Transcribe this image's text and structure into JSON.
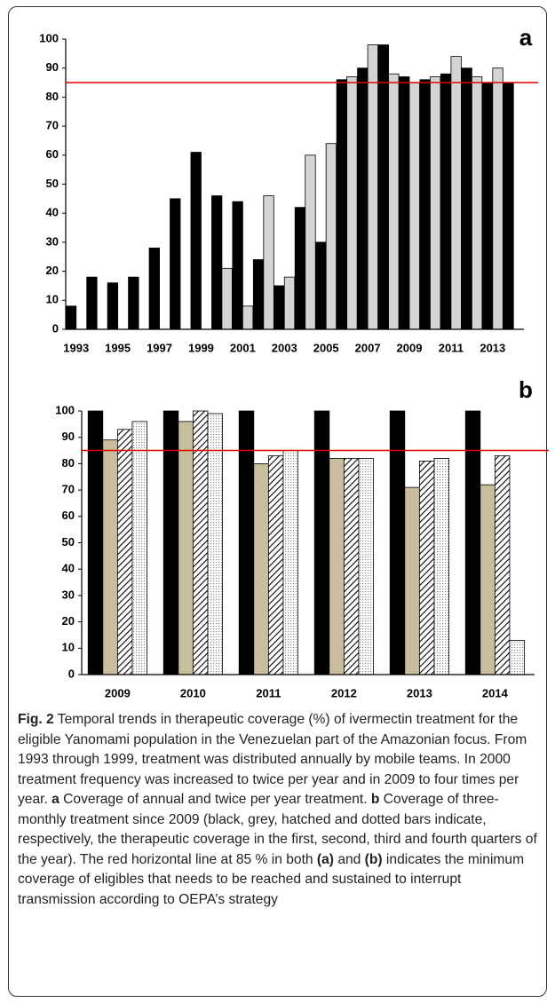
{
  "chart_data": [
    {
      "type": "bar",
      "panel_label": "a",
      "categories": [
        "1993",
        null,
        "1995",
        null,
        "1997",
        null,
        "1999",
        null,
        "2001",
        null,
        "2003",
        null,
        "2005",
        null,
        "2007",
        null,
        "2009",
        null,
        "2011",
        null,
        "2013",
        null
      ],
      "series": [
        {
          "color": "#000000",
          "values": [
            8,
            18,
            16,
            18,
            28,
            45,
            61,
            46,
            44,
            24,
            15,
            42,
            30,
            86,
            90,
            98,
            87,
            86,
            88,
            90,
            85,
            85
          ]
        },
        {
          "color": "#d4d4d4",
          "values": [
            null,
            null,
            null,
            null,
            null,
            null,
            null,
            21,
            8,
            46,
            18,
            60,
            64,
            87,
            98,
            88,
            85,
            87,
            94,
            87,
            90,
            null
          ]
        }
      ],
      "ylim": [
        0,
        100
      ],
      "yticks": [
        0,
        10,
        20,
        30,
        40,
        50,
        60,
        70,
        80,
        90,
        100
      ],
      "hline": 85,
      "hline_color": "#e00000"
    },
    {
      "type": "bar",
      "panel_label": "b",
      "categories": [
        "2009",
        "2010",
        "2011",
        "2012",
        "2013",
        "2014"
      ],
      "series": [
        {
          "color": "#000000",
          "values": [
            100,
            100,
            100,
            100,
            100,
            100
          ]
        },
        {
          "color": "#c8bd9c",
          "values": [
            89,
            96,
            80,
            82,
            71,
            72
          ]
        },
        {
          "color": "#000000",
          "pattern": "hatch",
          "values": [
            93,
            100,
            83,
            82,
            81,
            83
          ]
        },
        {
          "color": "#9a9a9a",
          "pattern": "dots",
          "values": [
            96,
            99,
            85,
            82,
            82,
            13
          ]
        }
      ],
      "ylim": [
        0,
        100
      ],
      "yticks": [
        0,
        10,
        20,
        30,
        40,
        50,
        60,
        70,
        80,
        90,
        100
      ],
      "hline": 85,
      "hline_color": "#e00000"
    }
  ],
  "caption": [
    {
      "text": "Fig. 2",
      "bold": true
    },
    {
      "text": " Temporal trends in therapeutic coverage (%) of ivermectin treatment for the eligible Yanomami population in the Venezuelan part of the Amazonian focus. From 1993 through 1999, treatment was distributed annually by mobile teams. In 2000 treatment frequency was increased to twice per year and in 2009 to four times per year. ",
      "bold": false
    },
    {
      "text": "a",
      "bold": true
    },
    {
      "text": " Coverage of annual and twice per year treatment. ",
      "bold": false
    },
    {
      "text": "b",
      "bold": true
    },
    {
      "text": " Coverage of three-monthly treatment since 2009 (black, grey, hatched and dotted bars indicate, respectively, the therapeutic coverage in the first, second, third and fourth quarters of the year). The red horizontal line at 85 % in both ",
      "bold": false
    },
    {
      "text": "(a)",
      "bold": true
    },
    {
      "text": " and ",
      "bold": false
    },
    {
      "text": "(b)",
      "bold": true
    },
    {
      "text": " indicates the minimum coverage of eligibles that needs to be reached and sustained to interrupt transmission according to OEPA’s strategy",
      "bold": false
    }
  ]
}
